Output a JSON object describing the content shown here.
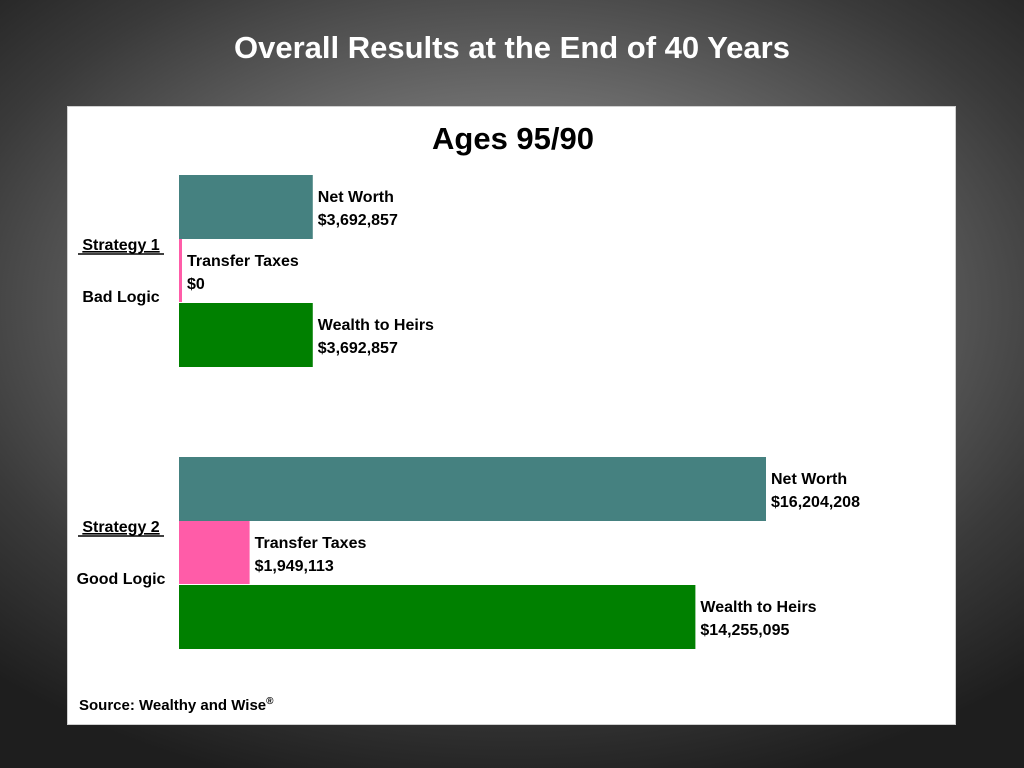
{
  "slide": {
    "title": "Overall Results at the End of 40 Years"
  },
  "chart_data": {
    "type": "bar",
    "orientation": "horizontal",
    "title": "Ages 95/90",
    "source": "Source:  Wealthy and Wise",
    "source_mark": "®",
    "groups": [
      {
        "label": "Strategy 1",
        "sublabel": "Bad Logic",
        "bars": [
          {
            "name": "Net Worth",
            "value": 3692857,
            "label": "$3,692,857",
            "color": "#458180"
          },
          {
            "name": "Transfer Taxes",
            "value": 0,
            "label": "$0",
            "color": "#ff5ca8"
          },
          {
            "name": "Wealth to Heirs",
            "value": 3692857,
            "label": "$3,692,857",
            "color": "#008000"
          }
        ]
      },
      {
        "label": "Strategy 2",
        "sublabel": "Good Logic",
        "bars": [
          {
            "name": "Net Worth",
            "value": 16204208,
            "label": "$16,204,208",
            "color": "#458180"
          },
          {
            "name": "Transfer Taxes",
            "value": 1949113,
            "label": "$1,949,113",
            "color": "#ff5ca8"
          },
          {
            "name": "Wealth to Heirs",
            "value": 14255095,
            "label": "$14,255,095",
            "color": "#008000"
          }
        ]
      }
    ],
    "xlim": [
      0,
      16204208
    ],
    "grid": false,
    "legend": "none"
  }
}
